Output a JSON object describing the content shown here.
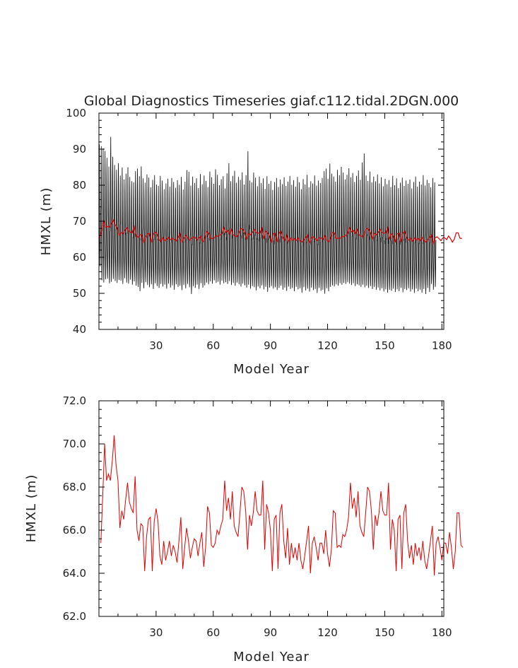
{
  "title": "Global Diagnostics Timeseries giaf.c112.tidal.2DGN.000",
  "colors": {
    "monthly": "#000000",
    "annual": "#e00000",
    "axis": "#000000",
    "text": "#222222"
  },
  "chart_data": [
    {
      "type": "line",
      "title": "Global Diagnostics Timeseries giaf.c112.tidal.2DGN.000",
      "xlabel": "Model Year",
      "ylabel": "HMXL (m)",
      "xlim": [
        0,
        181
      ],
      "ylim": [
        40,
        100
      ],
      "xticks": [
        30,
        60,
        90,
        120,
        150,
        180
      ],
      "yticks": [
        40,
        50,
        60,
        70,
        80,
        90,
        100
      ],
      "ytick_labels": [
        "40",
        "50",
        "60",
        "70",
        "80",
        "90",
        "100"
      ],
      "series": [
        {
          "color": "#000000",
          "description": "monthly values, annual cycle from about 53 (min) to about 84 (max), peaks up to 93 in year 7",
          "years": [
            1,
            181
          ],
          "annual_max": [
            91.3,
            90.8,
            90.2,
            89.5,
            87.6,
            85.2,
            93.4,
            87.9,
            85.6,
            84.3,
            86.1,
            82.7,
            84.9,
            81.6,
            83.2,
            85.0,
            82.3,
            81.1,
            80.8,
            83.9,
            84.6,
            82.5,
            85.2,
            81.9,
            80.7,
            83.0,
            82.1,
            79.4,
            81.5,
            82.8,
            80.2,
            79.8,
            82.6,
            81.3,
            78.9,
            80.5,
            81.8,
            79.6,
            82.0,
            80.9,
            79.3,
            81.4,
            80.1,
            82.3,
            78.8,
            81.0,
            84.2,
            83.7,
            79.9,
            82.4,
            80.6,
            81.9,
            79.2,
            83.1,
            80.3,
            82.7,
            81.2,
            79.5,
            83.8,
            82.2,
            80.4,
            84.4,
            82.9,
            80.0,
            81.7,
            82.5,
            79.1,
            83.3,
            86.1,
            81.1,
            82.6,
            84.0,
            80.7,
            82.3,
            81.5,
            83.6,
            80.2,
            82.8,
            89.4,
            81.3,
            80.8,
            83.5,
            82.1,
            79.7,
            82.4,
            80.6,
            81.9,
            79.0,
            82.5,
            80.4,
            81.2,
            78.7,
            80.9,
            82.0,
            79.5,
            81.6,
            80.3,
            82.2,
            79.8,
            81.0,
            82.6,
            80.1,
            81.4,
            79.6,
            82.3,
            80.8,
            78.9,
            81.7,
            80.2,
            82.9,
            79.4,
            81.1,
            80.5,
            82.7,
            79.9,
            81.3,
            80.6,
            82.0,
            83.9,
            84.6,
            81.8,
            86.0,
            83.2,
            82.4,
            81.0,
            84.3,
            82.8,
            85.1,
            83.5,
            81.6,
            82.9,
            84.7,
            82.2,
            83.4,
            80.9,
            82.6,
            84.1,
            81.5,
            86.3,
            88.8,
            82.7,
            81.2,
            83.8,
            80.8,
            82.4,
            81.1,
            83.0,
            80.5,
            82.2,
            79.7,
            81.8,
            80.3,
            81.4,
            79.5,
            82.6,
            80.0,
            81.9,
            79.2,
            80.7,
            82.1,
            79.8,
            81.3,
            80.4,
            81.6,
            79.1,
            80.9,
            82.4,
            79.6,
            81.0,
            80.2,
            82.8,
            79.9,
            81.5,
            80.6,
            79.4,
            82.0,
            80.8
          ],
          "annual_min": [
            57.5,
            53.6,
            53.0,
            53.9,
            54.1,
            52.8,
            53.2,
            54.0,
            53.4,
            52.9,
            53.7,
            53.5,
            52.6,
            54.2,
            53.0,
            52.7,
            53.8,
            52.4,
            53.3,
            52.1,
            51.8,
            50.6,
            52.9,
            51.4,
            53.1,
            52.3,
            51.7,
            52.5,
            51.2,
            52.8,
            52.0,
            51.5,
            52.6,
            51.9,
            52.4,
            51.3,
            52.7,
            51.6,
            52.2,
            51.0,
            52.5,
            51.8,
            52.1,
            50.9,
            52.3,
            51.4,
            52.6,
            51.7,
            49.8,
            52.0,
            51.5,
            52.4,
            51.2,
            52.8,
            51.6,
            52.2,
            53.0,
            52.5,
            53.3,
            52.7,
            53.6,
            52.9,
            53.2,
            52.4,
            53.5,
            52.8,
            53.1,
            52.6,
            53.4,
            52.3,
            52.9,
            52.1,
            53.0,
            52.5,
            51.9,
            52.7,
            52.2,
            51.6,
            52.4,
            51.3,
            52.0,
            51.7,
            50.8,
            51.9,
            51.4,
            52.2,
            51.1,
            51.8,
            50.4,
            51.6,
            52.0,
            51.3,
            51.7,
            50.9,
            51.5,
            52.1,
            51.0,
            51.6,
            50.7,
            51.9,
            51.2,
            51.5,
            50.6,
            51.8,
            51.1,
            51.4,
            50.2,
            51.7,
            50.8,
            51.3,
            50.5,
            51.6,
            50.9,
            51.2,
            50.1,
            51.5,
            50.7,
            51.0,
            49.9,
            51.4,
            50.6,
            51.8,
            52.2,
            51.9,
            52.5,
            52.1,
            52.8,
            52.4,
            52.9,
            52.6,
            53.1,
            52.7,
            52.3,
            52.8,
            52.0,
            52.5,
            52.2,
            51.8,
            52.4,
            51.7,
            52.1,
            51.5,
            52.0,
            51.2,
            51.8,
            51.0,
            51.6,
            50.8,
            51.4,
            50.5,
            51.1,
            50.2,
            51.0,
            50.7,
            51.3,
            50.4,
            51.1,
            50.6,
            51.5,
            50.3,
            51.2,
            50.9,
            51.4,
            50.5,
            51.1,
            50.1,
            51.3,
            50.6,
            51.0,
            50.2,
            51.2,
            49.8,
            51.5,
            50.4,
            52.6,
            51.0,
            51.8
          ]
        },
        {
          "color": "#e00000",
          "description": "annual mean, same as lower panel",
          "years": [
            1,
            181
          ]
        }
      ]
    },
    {
      "type": "line",
      "xlabel": "Model Year",
      "ylabel": "HMXL (m)",
      "xlim": [
        0,
        181
      ],
      "ylim": [
        62,
        72
      ],
      "xticks": [
        30,
        60,
        90,
        120,
        150,
        180
      ],
      "yticks": [
        62,
        64,
        66,
        68,
        70,
        72
      ],
      "ytick_labels": [
        "62.0",
        "64.0",
        "66.0",
        "68.0",
        "70.0",
        "72.0"
      ],
      "series": [
        {
          "color": "#e00000",
          "x_start": 1,
          "values": [
            65.4,
            67.6,
            70.0,
            68.3,
            68.6,
            68.3,
            69.2,
            70.4,
            69.0,
            68.3,
            66.1,
            66.9,
            66.5,
            67.4,
            68.2,
            67.3,
            67.0,
            66.8,
            68.5,
            66.0,
            65.5,
            66.3,
            66.2,
            64.1,
            65.7,
            66.5,
            66.6,
            64.1,
            66.4,
            67.0,
            66.4,
            64.8,
            64.4,
            65.5,
            64.6,
            65.0,
            65.5,
            64.8,
            65.3,
            65.0,
            64.5,
            65.5,
            66.6,
            64.2,
            65.2,
            66.1,
            65.5,
            64.7,
            65.2,
            65.6,
            65.5,
            64.8,
            65.4,
            65.9,
            64.3,
            65.2,
            67.1,
            66.8,
            65.3,
            65.2,
            65.4,
            66.0,
            65.8,
            66.2,
            66.5,
            68.3,
            66.9,
            67.5,
            66.5,
            67.8,
            66.2,
            65.9,
            65.7,
            66.8,
            68.0,
            67.8,
            66.9,
            65.1,
            66.7,
            66.2,
            66.8,
            67.8,
            66.9,
            66.7,
            66.7,
            68.3,
            65.1,
            67.2,
            66.8,
            66.0,
            64.1,
            66.5,
            66.7,
            64.2,
            66.8,
            67.2,
            65.5,
            64.7,
            66.1,
            64.4,
            65.4,
            64.7,
            65.2,
            64.6,
            65.4,
            64.6,
            64.2,
            64.8,
            65.5,
            66.2,
            64.0,
            65.4,
            65.7,
            65.2,
            64.6,
            65.4,
            65.4,
            64.9,
            66.0,
            64.9,
            64.3,
            65.1,
            66.9,
            66.8,
            65.2,
            65.3,
            65.2,
            65.8,
            65.7,
            66.0,
            66.6,
            68.2,
            67.0,
            67.5,
            66.6,
            67.8,
            66.2,
            65.9,
            65.7,
            66.8,
            68.0,
            67.8,
            66.9,
            65.1,
            66.7,
            66.2,
            66.8,
            67.8,
            66.9,
            66.7,
            66.7,
            68.2,
            65.1,
            66.5,
            66.0,
            64.1,
            66.5,
            66.7,
            64.2,
            66.8,
            67.2,
            65.5,
            64.7,
            65.3,
            64.4,
            65.4,
            64.8,
            65.2,
            64.6,
            65.5,
            64.6,
            64.2,
            64.8,
            65.5,
            66.2,
            63.9,
            65.4,
            65.7,
            65.2,
            64.6,
            65.4,
            65.4,
            64.9,
            65.9,
            65.2,
            64.2,
            65.0,
            66.8,
            66.8,
            65.3,
            65.2
          ]
        }
      ]
    }
  ]
}
